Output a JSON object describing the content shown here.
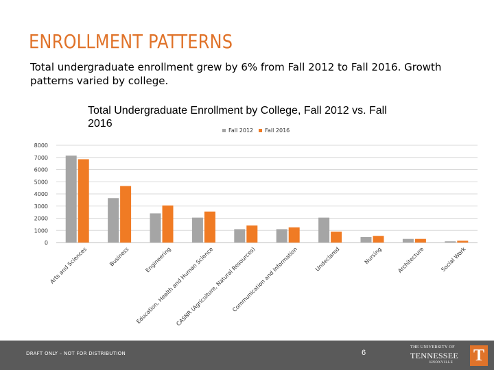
{
  "slide": {
    "title": "ENROLLMENT PATTERNS",
    "subtitle": "Total undergraduate enrollment grew by 6% from Fall 2012 to Fall 2016.  Growth patterns varied by college."
  },
  "footer": {
    "draft_text": "DRAFT ONLY – NOT FOR DISTRIBUTION",
    "page_number": "6",
    "logo_line1": "THE UNIVERSITY OF",
    "logo_line2": "TENNESSEE",
    "logo_line3": "KNOXVILLE",
    "logo_mark": "T"
  },
  "colors": {
    "fall2012": "#a5a5a5",
    "fall2016": "#f07b24",
    "grid": "#d9d9d9",
    "title": "#e0732a",
    "footer": "#5a5a5a"
  },
  "chart_data": {
    "type": "bar",
    "title": "Total Undergraduate Enrollment by College, Fall 2012 vs. Fall 2016",
    "xlabel": "",
    "ylabel": "",
    "ylim": [
      0,
      8000
    ],
    "yticks": [
      0,
      1000,
      2000,
      3000,
      4000,
      5000,
      6000,
      7000,
      8000
    ],
    "grid": true,
    "legend_position": "top",
    "categories": [
      "Arts and Sciences",
      "Business",
      "Engineering",
      "Education, Health and Human Science",
      "CASNR (Agriculture, Natural Resources)",
      "Communication and Information",
      "Undeclared",
      "Nursing",
      "Architecture",
      "Social Work"
    ],
    "series": [
      {
        "name": "Fall 2012",
        "values": [
          7150,
          3650,
          2400,
          2050,
          1100,
          1100,
          2050,
          450,
          300,
          100
        ]
      },
      {
        "name": "Fall 2016",
        "values": [
          6850,
          4650,
          3050,
          2550,
          1400,
          1250,
          900,
          550,
          300,
          150
        ]
      }
    ]
  }
}
